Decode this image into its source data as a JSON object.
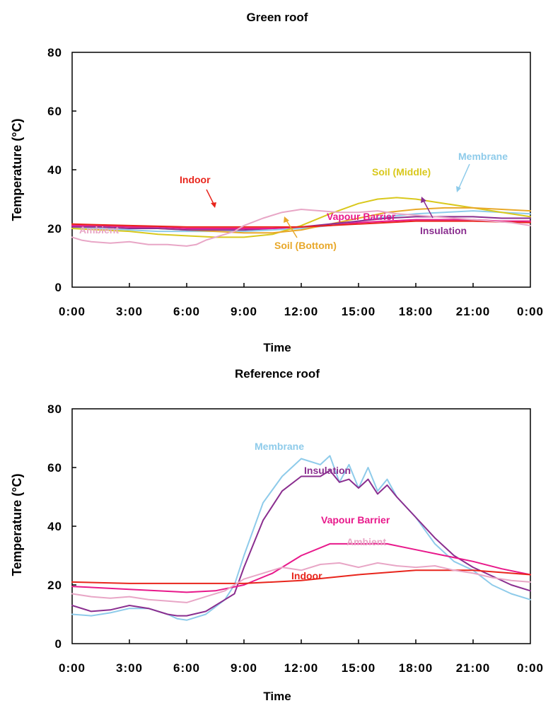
{
  "chart_data": [
    {
      "type": "line",
      "title": "Green roof",
      "xlabel": "Time",
      "ylabel": "Temperature (°C)",
      "x_ticks": [
        "0:00",
        "3:00",
        "6:00",
        "9:00",
        "12:00",
        "15:00",
        "18:00",
        "21:00",
        "0:00"
      ],
      "y_ticks": [
        "0",
        "20",
        "40",
        "60",
        "80"
      ],
      "xlim": [
        0,
        24
      ],
      "ylim": [
        0,
        80
      ],
      "grid": false,
      "series": [
        {
          "name": "Membrane",
          "color": "#8ecbea",
          "x": [
            0,
            1.5,
            3,
            4.5,
            6,
            7.5,
            9,
            10.5,
            12,
            13.5,
            15,
            16.5,
            18,
            19.5,
            21,
            22.5,
            24
          ],
          "y": [
            20,
            20,
            19.5,
            19,
            19,
            19,
            19,
            19.5,
            20,
            21,
            22.5,
            24,
            25,
            25.5,
            26,
            25.5,
            25
          ]
        },
        {
          "name": "Soil (Middle)",
          "color": "#d9c81c",
          "x": [
            0,
            1.5,
            3,
            4.5,
            6,
            7.5,
            9,
            10.5,
            12,
            13.5,
            15,
            16,
            17,
            18,
            19.5,
            21,
            22.5,
            24
          ],
          "y": [
            20,
            19.5,
            19,
            18,
            17.5,
            17,
            17,
            18,
            21,
            25,
            28.5,
            30,
            30.5,
            30,
            28.5,
            27,
            25.5,
            24
          ]
        },
        {
          "name": "Soil (Bottom)",
          "color": "#e8a82a",
          "x": [
            0,
            1.5,
            3,
            4.5,
            6,
            7.5,
            9,
            10.5,
            12,
            13.5,
            15,
            16.5,
            18,
            19.5,
            21,
            22.5,
            24
          ],
          "y": [
            21.5,
            21,
            20.5,
            20,
            19.5,
            19,
            18.5,
            18.5,
            19.5,
            21.5,
            23.5,
            25.5,
            26.5,
            27,
            27,
            26.5,
            26
          ]
        },
        {
          "name": "Insulation",
          "color": "#8a2e8f",
          "x": [
            0,
            1.5,
            3,
            4.5,
            6,
            7.5,
            9,
            10.5,
            12,
            13.5,
            15,
            16.5,
            18,
            19.5,
            21,
            22.5,
            24
          ],
          "y": [
            20.5,
            20.5,
            20,
            20,
            19.5,
            19.5,
            19.5,
            20,
            20.5,
            21.5,
            22.5,
            23.5,
            24,
            24,
            24,
            23.5,
            23.5
          ]
        },
        {
          "name": "Vapour Barrier",
          "color": "#e8198b",
          "x": [
            0,
            1.5,
            3,
            4.5,
            6,
            7.5,
            9,
            10.5,
            12,
            13.5,
            15,
            16.5,
            18,
            19.5,
            21,
            22.5,
            24
          ],
          "y": [
            21,
            21,
            20.5,
            20.5,
            20,
            20,
            20,
            20,
            20.5,
            21,
            22,
            22.5,
            23,
            23,
            23,
            22.5,
            22.5
          ]
        },
        {
          "name": "Indoor",
          "color": "#e8251c",
          "x": [
            0,
            3,
            6,
            9,
            12,
            15,
            18,
            21,
            24
          ],
          "y": [
            21.5,
            21,
            20.5,
            20.5,
            20.5,
            21.5,
            22.5,
            22.5,
            22
          ]
        },
        {
          "name": "Ambient",
          "color": "#e8a6c6",
          "x": [
            0,
            0.5,
            1,
            2,
            3,
            4,
            5,
            6,
            6.5,
            7,
            8,
            8.5,
            9,
            10,
            11,
            12,
            13,
            14,
            15,
            16,
            17,
            18,
            19,
            20,
            21,
            22,
            23,
            24
          ],
          "y": [
            17,
            16,
            15.5,
            15,
            15.5,
            14.5,
            14.5,
            14,
            14.5,
            16,
            18,
            19,
            21,
            23.5,
            25.5,
            26.5,
            26,
            25.5,
            25.5,
            26,
            25,
            24.5,
            24,
            23.5,
            23,
            22.5,
            22,
            21
          ]
        }
      ],
      "annotations": [
        {
          "text": "Membrane",
          "color": "#8ecbea"
        },
        {
          "text": "Soil (Middle)",
          "color": "#d9c81c"
        },
        {
          "text": "Indoor",
          "color": "#e8251c"
        },
        {
          "text": "Vapour Barrier",
          "color": "#e8198b"
        },
        {
          "text": "Insulation",
          "color": "#8a2e8f"
        },
        {
          "text": "Soil (Bottom)",
          "color": "#e8a82a"
        },
        {
          "text": "Ambient",
          "color": "#e8a6c6"
        }
      ]
    },
    {
      "type": "line",
      "title": "Reference roof",
      "xlabel": "Time",
      "ylabel": "Temperature (°C)",
      "x_ticks": [
        "0:00",
        "3:00",
        "6:00",
        "9:00",
        "12:00",
        "15:00",
        "18:00",
        "21:00",
        "0:00"
      ],
      "y_ticks": [
        "0",
        "20",
        "40",
        "60",
        "80"
      ],
      "xlim": [
        0,
        24
      ],
      "ylim": [
        0,
        80
      ],
      "grid": false,
      "series": [
        {
          "name": "Membrane",
          "color": "#8ecbea",
          "x": [
            0,
            1,
            2,
            3,
            4,
            5,
            5.5,
            6,
            7,
            8,
            8.5,
            9,
            10,
            11,
            12,
            13,
            13.5,
            14,
            14.5,
            15,
            15.5,
            16,
            16.5,
            17,
            18,
            19,
            20,
            21,
            22,
            23,
            24
          ],
          "y": [
            10,
            9.5,
            10.5,
            12,
            12,
            10,
            8.5,
            8,
            10,
            15,
            20,
            30,
            48,
            57,
            63,
            61,
            64,
            55,
            61,
            53,
            60,
            52,
            56,
            50,
            43,
            34,
            28,
            25,
            20,
            17,
            15
          ]
        },
        {
          "name": "Insulation",
          "color": "#8a2e8f",
          "x": [
            0,
            1,
            2,
            3,
            4,
            5,
            5.5,
            6,
            7,
            8,
            8.5,
            9,
            10,
            11,
            12,
            13,
            13.5,
            14,
            14.5,
            15,
            15.5,
            16,
            16.5,
            17,
            18,
            19,
            20,
            21,
            22,
            23,
            24
          ],
          "y": [
            13,
            11,
            11.5,
            13,
            12,
            10,
            9.5,
            9.5,
            11,
            15,
            17,
            26,
            42,
            52,
            57,
            57,
            59,
            55,
            56,
            53,
            56,
            51,
            54,
            50,
            43,
            36,
            30,
            26,
            23,
            20,
            18
          ]
        },
        {
          "name": "Vapour Barrier",
          "color": "#e8198b",
          "x": [
            0,
            3,
            6,
            7.5,
            9,
            10.5,
            12,
            13.5,
            15,
            16.5,
            18,
            19.5,
            21,
            22.5,
            24
          ],
          "y": [
            19.5,
            18.5,
            17.5,
            18,
            20,
            24,
            30,
            34,
            34,
            34,
            32,
            30,
            28,
            25.5,
            23.5
          ]
        },
        {
          "name": "Indoor",
          "color": "#e8251c",
          "x": [
            0,
            3,
            6,
            9,
            12,
            15,
            18,
            21,
            24
          ],
          "y": [
            21,
            20.5,
            20.5,
            20.5,
            21.5,
            23.5,
            25,
            25,
            23.5
          ]
        },
        {
          "name": "Ambient",
          "color": "#e8a6c6",
          "x": [
            0,
            1,
            2,
            3,
            4,
            5,
            6,
            7,
            8,
            9,
            10,
            11,
            12,
            13,
            14,
            15,
            16,
            17,
            18,
            19,
            20,
            21,
            22,
            23,
            24
          ],
          "y": [
            17,
            16,
            15.5,
            16,
            15,
            14.5,
            14,
            16,
            18,
            22,
            24,
            26,
            25,
            27,
            27.5,
            26,
            27.5,
            26.5,
            26,
            26.5,
            25,
            24,
            22.5,
            21.5,
            21
          ]
        }
      ],
      "annotations": [
        {
          "text": "Membrane",
          "color": "#8ecbea"
        },
        {
          "text": "Insulation",
          "color": "#8a2e8f"
        },
        {
          "text": "Vapour Barrier",
          "color": "#e8198b"
        },
        {
          "text": "Ambient",
          "color": "#e8a6c6"
        },
        {
          "text": "Indoor",
          "color": "#e8251c"
        }
      ]
    }
  ]
}
